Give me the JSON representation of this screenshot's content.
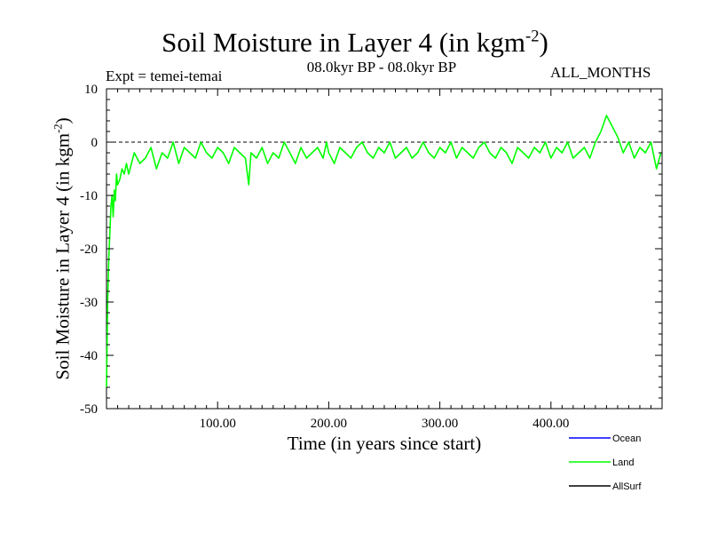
{
  "chart_data": {
    "type": "line",
    "title_main": "Soil Moisture in Layer 4 (in kgm",
    "title_sup": "-2",
    "title_close": ")",
    "subtitle": "08.0kyr BP - 08.0kyr BP",
    "experiment": "Expt = temei-temai",
    "months": "ALL_MONTHS",
    "xlabel": "Time (in years since start)",
    "ylabel_main": "Soil Moisture in Layer 4 (in kgm",
    "ylabel_sup": "-2",
    "ylabel_close": ")",
    "xlim": [
      0,
      500
    ],
    "ylim": [
      -50,
      10
    ],
    "x_ticks": [
      100,
      200,
      300,
      400
    ],
    "x_tick_labels": [
      "100.00",
      "200.00",
      "300.00",
      "400.00"
    ],
    "y_ticks": [
      10,
      0,
      -10,
      -20,
      -30,
      -40,
      -50
    ],
    "y_tick_labels": [
      "10",
      "0",
      "-10",
      "-20",
      "-30",
      "-40",
      "-50"
    ],
    "zero_line": true,
    "legend_position": "bottom-right",
    "series": [
      {
        "name": "Ocean",
        "color": "#0000ff",
        "values": []
      },
      {
        "name": "Land",
        "color": "#00ff00",
        "x": [
          0,
          1,
          2,
          3,
          4,
          5,
          6,
          7,
          8,
          9,
          10,
          12,
          14,
          16,
          18,
          20,
          25,
          30,
          35,
          40,
          45,
          50,
          55,
          60,
          65,
          70,
          75,
          80,
          85,
          90,
          95,
          100,
          105,
          110,
          115,
          120,
          125,
          128,
          130,
          135,
          140,
          145,
          150,
          155,
          160,
          165,
          170,
          175,
          180,
          185,
          190,
          195,
          198,
          200,
          205,
          210,
          215,
          220,
          225,
          230,
          235,
          240,
          245,
          250,
          255,
          260,
          265,
          270,
          275,
          280,
          285,
          290,
          295,
          300,
          305,
          310,
          315,
          320,
          325,
          330,
          335,
          340,
          345,
          350,
          355,
          360,
          365,
          370,
          375,
          380,
          385,
          390,
          395,
          400,
          405,
          410,
          415,
          420,
          425,
          430,
          435,
          440,
          445,
          450,
          455,
          460,
          465,
          470,
          475,
          480,
          485,
          490,
          495,
          499
        ],
        "values": [
          -46,
          -30,
          -22,
          -17,
          -12,
          -10,
          -14,
          -9,
          -11,
          -6,
          -8,
          -7,
          -5,
          -6,
          -4,
          -6,
          -2,
          -4,
          -3,
          -1,
          -5,
          -2,
          -3,
          0,
          -4,
          -1,
          -2,
          -3,
          0,
          -2,
          -3,
          -1,
          -2,
          -4,
          -1,
          -2,
          -3,
          -8,
          -2,
          -3,
          -1,
          -4,
          -2,
          -3,
          0,
          -2,
          -4,
          -1,
          -3,
          -2,
          -1,
          -3,
          0,
          -2,
          -4,
          -1,
          -2,
          -3,
          -1,
          0,
          -2,
          -3,
          -1,
          -2,
          0,
          -3,
          -2,
          -1,
          -3,
          -2,
          0,
          -2,
          -3,
          -1,
          -2,
          0,
          -3,
          -1,
          -2,
          -3,
          -1,
          0,
          -2,
          -3,
          -1,
          -2,
          -4,
          -1,
          -2,
          -3,
          -1,
          -2,
          0,
          -3,
          -1,
          -2,
          0,
          -3,
          -2,
          -1,
          -3,
          0,
          2,
          5,
          3,
          1,
          -2,
          0,
          -3,
          -1,
          -2,
          0,
          -5,
          -2
        ]
      },
      {
        "name": "AllSurf",
        "color": "#000000",
        "values": []
      }
    ]
  }
}
